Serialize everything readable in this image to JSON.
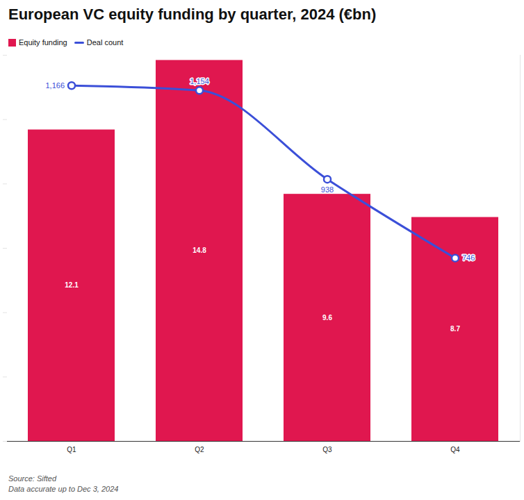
{
  "chart_data": {
    "type": "bar",
    "title": "European VC equity funding by quarter, 2024 (€bn)",
    "categories": [
      "Q1",
      "Q2",
      "Q3",
      "Q4"
    ],
    "series": [
      {
        "name": "Equity funding",
        "type": "bar",
        "color": "#e0174f",
        "values": [
          12.1,
          14.8,
          9.6,
          8.7
        ]
      },
      {
        "name": "Deal count",
        "type": "line",
        "axis": "y2",
        "color": "#3b4fd8",
        "marker": "circle",
        "values": [
          1166,
          1154,
          938,
          746
        ],
        "value_labels": [
          "1,166",
          "1,154",
          "938",
          "746"
        ]
      }
    ],
    "ylim": [
      0,
      15
    ],
    "yticks": [
      0,
      2.5,
      5,
      7.5,
      10,
      12.5,
      15
    ],
    "y2lim": [
      300,
      1240
    ],
    "tick_labels": "x",
    "data_labels": true,
    "legend": "top-left",
    "source": "Source: Sifted",
    "note": "Data accurate up to Dec 3, 2024"
  }
}
